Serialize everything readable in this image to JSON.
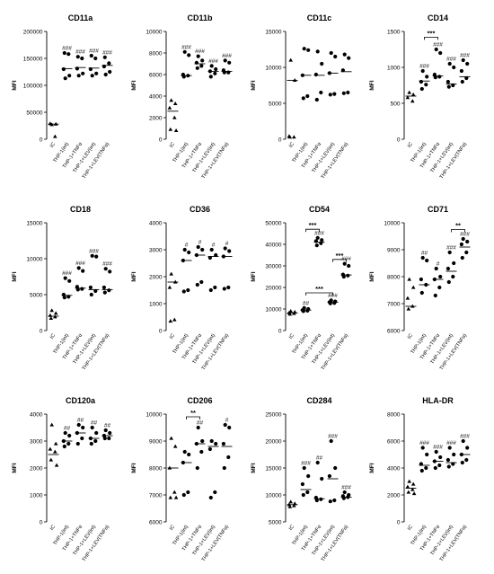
{
  "figure": {
    "categories": [
      "IC",
      "THP-1(int)",
      "THP-1+TNFα",
      "THP-1+LEV(int)",
      "THP-1+LEV(TNFα)"
    ],
    "ylabel": "MFI"
  },
  "chart_data": [
    {
      "type": "scatter",
      "title": "CD11a",
      "ylabel": "MFI",
      "ylim": [
        0,
        200000
      ],
      "yticks": [
        0,
        50000,
        100000,
        150000,
        200000
      ],
      "groups": [
        {
          "values": [
            27000,
            28000,
            29000,
            5000
          ],
          "mean": 28000
        },
        {
          "values": [
            113000,
            118000,
            130000,
            158000,
            160000
          ],
          "mean": 131000
        },
        {
          "values": [
            118000,
            122000,
            131000,
            150000,
            153000
          ],
          "mean": 133000
        },
        {
          "values": [
            118000,
            122000,
            130000,
            150000,
            155000
          ],
          "mean": 132000
        },
        {
          "values": [
            120000,
            125000,
            135000,
            141000,
            152000
          ],
          "mean": 137000
        }
      ],
      "annotations": [
        "",
        "###",
        "###",
        "###",
        "###"
      ],
      "brackets": []
    },
    {
      "type": "scatter",
      "title": "CD11b",
      "ylabel": "MFI",
      "ylim": [
        0,
        10000
      ],
      "yticks": [
        0,
        2000,
        4000,
        6000,
        8000,
        10000
      ],
      "groups": [
        {
          "values": [
            3600,
            3300,
            2900,
            2000,
            900,
            800
          ],
          "mean": 2600
        },
        {
          "values": [
            8100,
            7800,
            6000,
            5900,
            5800
          ],
          "mean": 5900
        },
        {
          "values": [
            7700,
            7300,
            7100,
            6800,
            6600
          ],
          "mean": 7000
        },
        {
          "values": [
            6800,
            6500,
            6300,
            6100,
            5800
          ],
          "mean": 6300
        },
        {
          "values": [
            7300,
            7100,
            6400,
            6200,
            6200
          ],
          "mean": 6300
        }
      ],
      "annotations": [
        "",
        "###",
        "###",
        "###",
        "###"
      ],
      "brackets": []
    },
    {
      "type": "scatter",
      "title": "CD11c",
      "ylabel": "MFI",
      "ylim": [
        0,
        15000
      ],
      "yticks": [
        0,
        5000,
        10000,
        15000
      ],
      "groups": [
        {
          "values": [
            11000,
            8200,
            400,
            300,
            300
          ],
          "mean": 8200
        },
        {
          "values": [
            12600,
            12400,
            8900,
            6000,
            5700
          ],
          "mean": 8900
        },
        {
          "values": [
            12200,
            10500,
            9000,
            6500,
            5500
          ],
          "mean": 8900
        },
        {
          "values": [
            12000,
            11500,
            9200,
            6300,
            6200
          ],
          "mean": 9200
        },
        {
          "values": [
            11800,
            11300,
            9600,
            6500,
            6400
          ],
          "mean": 9400
        }
      ],
      "annotations": [
        "",
        "",
        "",
        "",
        ""
      ],
      "brackets": []
    },
    {
      "type": "scatter",
      "title": "CD14",
      "ylabel": "MFI",
      "ylim": [
        0,
        1500
      ],
      "yticks": [
        0,
        500,
        1000,
        1500
      ],
      "groups": [
        {
          "values": [
            650,
            620,
            580,
            530
          ],
          "mean": 600
        },
        {
          "values": [
            950,
            870,
            800,
            760,
            700
          ],
          "mean": 810
        },
        {
          "values": [
            1250,
            1200,
            900,
            870,
            860
          ],
          "mean": 880
        },
        {
          "values": [
            1050,
            1000,
            800,
            750,
            730
          ],
          "mean": 770
        },
        {
          "values": [
            1100,
            1050,
            950,
            850,
            800
          ],
          "mean": 870
        }
      ],
      "annotations": [
        "",
        "###",
        "###",
        "###",
        "###"
      ],
      "brackets": [
        {
          "from": 1,
          "to": 2,
          "label": "***",
          "y": 1420
        }
      ]
    },
    {
      "type": "scatter",
      "title": "CD18",
      "ylabel": "MFI",
      "ylim": [
        0,
        15000
      ],
      "yticks": [
        0,
        5000,
        10000,
        15000
      ],
      "groups": [
        {
          "values": [
            2800,
            2400,
            2100,
            1900,
            1700
          ],
          "mean": 2000
        },
        {
          "values": [
            7300,
            6900,
            5000,
            4700,
            4600
          ],
          "mean": 4900
        },
        {
          "values": [
            8700,
            8300,
            6100,
            5800,
            5700
          ],
          "mean": 5900
        },
        {
          "values": [
            10400,
            10300,
            6000,
            5500,
            5000
          ],
          "mean": 5700
        },
        {
          "values": [
            8600,
            8200,
            6000,
            5600,
            5300
          ],
          "mean": 5700
        }
      ],
      "annotations": [
        "",
        "###",
        "###",
        "###",
        "###"
      ],
      "brackets": []
    },
    {
      "type": "scatter",
      "title": "CD36",
      "ylabel": "MFI",
      "ylim": [
        0,
        4000
      ],
      "yticks": [
        0,
        1000,
        2000,
        3000,
        4000
      ],
      "groups": [
        {
          "values": [
            2100,
            1800,
            1600,
            400,
            350
          ],
          "mean": 1800
        },
        {
          "values": [
            3000,
            2900,
            2600,
            1500,
            1450
          ],
          "mean": 2600
        },
        {
          "values": [
            3100,
            3000,
            2800,
            1800,
            1700
          ],
          "mean": 2800
        },
        {
          "values": [
            3000,
            2800,
            2700,
            1600,
            1500
          ],
          "mean": 2750
        },
        {
          "values": [
            3050,
            2950,
            2750,
            1600,
            1550
          ],
          "mean": 2750
        }
      ],
      "annotations": [
        "",
        "#",
        "#",
        "#",
        "#"
      ],
      "brackets": []
    },
    {
      "type": "scatter",
      "title": "CD54",
      "ylabel": "MFI",
      "ylim": [
        0,
        50000
      ],
      "yticks": [
        0,
        10000,
        20000,
        30000,
        40000,
        50000
      ],
      "groups": [
        {
          "values": [
            9000,
            8600,
            8200,
            7900,
            7600
          ],
          "mean": 8200
        },
        {
          "values": [
            10500,
            10000,
            9500,
            9200,
            9000
          ],
          "mean": 9500
        },
        {
          "values": [
            43000,
            42000,
            41500,
            40500,
            39500
          ],
          "mean": 41000
        },
        {
          "values": [
            14000,
            13500,
            13200,
            12800,
            12600
          ],
          "mean": 13200
        },
        {
          "values": [
            31000,
            30000,
            26000,
            25500,
            25000
          ],
          "mean": 25800
        }
      ],
      "annotations": [
        "",
        "##",
        "###",
        "###",
        "###"
      ],
      "brackets": [
        {
          "from": 1,
          "to": 2,
          "label": "***",
          "y": 47000
        },
        {
          "from": 3,
          "to": 4,
          "label": "***",
          "y": 33000
        },
        {
          "from": 1,
          "to": 3,
          "label": "***",
          "y": 17500
        }
      ]
    },
    {
      "type": "scatter",
      "title": "CD71",
      "ylabel": "MFI",
      "ylim": [
        6000,
        10000
      ],
      "yticks": [
        6000,
        7000,
        8000,
        9000,
        10000
      ],
      "groups": [
        {
          "values": [
            7900,
            7600,
            7200,
            6900,
            6800
          ],
          "mean": 6900
        },
        {
          "values": [
            8700,
            8600,
            7900,
            7700,
            7400
          ],
          "mean": 7700
        },
        {
          "values": [
            8300,
            8000,
            7900,
            7600,
            7300
          ],
          "mean": 7900
        },
        {
          "values": [
            8900,
            8500,
            8300,
            8000,
            7800
          ],
          "mean": 8200
        },
        {
          "values": [
            9400,
            9300,
            9200,
            8900,
            8700
          ],
          "mean": 9100
        }
      ],
      "annotations": [
        "",
        "##",
        "#",
        "###",
        "###"
      ],
      "brackets": [
        {
          "from": 3,
          "to": 4,
          "label": "**",
          "y": 9750
        }
      ]
    },
    {
      "type": "scatter",
      "title": "CD120a",
      "ylabel": "MFI",
      "ylim": [
        0,
        4000
      ],
      "yticks": [
        0,
        1000,
        2000,
        3000,
        4000
      ],
      "groups": [
        {
          "values": [
            3600,
            2900,
            2700,
            2600,
            2300,
            2100
          ],
          "mean": 2500
        },
        {
          "values": [
            3300,
            3200,
            3000,
            2900,
            2800
          ],
          "mean": 3000
        },
        {
          "values": [
            3600,
            3500,
            3300,
            3100,
            2900
          ],
          "mean": 3300
        },
        {
          "values": [
            3500,
            3300,
            3100,
            3000,
            2900
          ],
          "mean": 3100
        },
        {
          "values": [
            3400,
            3300,
            3200,
            3100,
            3100
          ],
          "mean": 3200
        }
      ],
      "annotations": [
        "",
        "##",
        "##",
        "##",
        "##"
      ],
      "brackets": []
    },
    {
      "type": "scatter",
      "title": "CD206",
      "ylabel": "MFI",
      "ylim": [
        6000,
        10000
      ],
      "yticks": [
        6000,
        7000,
        8000,
        9000,
        10000
      ],
      "groups": [
        {
          "values": [
            9100,
            8800,
            8000,
            7100,
            6900,
            6900
          ],
          "mean": 8000
        },
        {
          "values": [
            8600,
            8500,
            8200,
            7100,
            7000
          ],
          "mean": 8200
        },
        {
          "values": [
            9500,
            9000,
            8900,
            8600,
            8000
          ],
          "mean": 8900
        },
        {
          "values": [
            9000,
            8900,
            8700,
            7100,
            6900
          ],
          "mean": 8800
        },
        {
          "values": [
            9600,
            9500,
            8900,
            8400,
            8000
          ],
          "mean": 8800
        }
      ],
      "annotations": [
        "",
        "",
        "##",
        "",
        "#"
      ],
      "brackets": [
        {
          "from": 1,
          "to": 2,
          "label": "**",
          "y": 9900
        }
      ]
    },
    {
      "type": "scatter",
      "title": "CD284",
      "ylabel": "MFI",
      "ylim": [
        5000,
        25000
      ],
      "yticks": [
        5000,
        10000,
        15000,
        20000,
        25000
      ],
      "groups": [
        {
          "values": [
            8700,
            8400,
            8200,
            8000,
            7800
          ],
          "mean": 8200
        },
        {
          "values": [
            15000,
            13500,
            12000,
            10500,
            10000
          ],
          "mean": 11000
        },
        {
          "values": [
            16000,
            13000,
            9500,
            9200,
            9000
          ],
          "mean": 9300
        },
        {
          "values": [
            20000,
            15000,
            13500,
            9000,
            8800
          ],
          "mean": 13000
        },
        {
          "values": [
            10500,
            10000,
            9800,
            9600,
            9400
          ],
          "mean": 9600
        }
      ],
      "annotations": [
        "",
        "###",
        "##",
        "###",
        "###"
      ],
      "brackets": []
    },
    {
      "type": "scatter",
      "title": "HLA-DR",
      "ylabel": "MFI",
      "ylim": [
        0,
        8000
      ],
      "yticks": [
        0,
        2000,
        4000,
        6000,
        8000
      ],
      "groups": [
        {
          "values": [
            3000,
            2800,
            2600,
            2400,
            2200,
            2100
          ],
          "mean": 2500
        },
        {
          "values": [
            5500,
            5000,
            4300,
            4000,
            3800
          ],
          "mean": 4200
        },
        {
          "values": [
            5200,
            4800,
            4500,
            4200,
            4000
          ],
          "mean": 4500
        },
        {
          "values": [
            5500,
            5000,
            4600,
            4300,
            4100
          ],
          "mean": 4400
        },
        {
          "values": [
            6000,
            5500,
            5000,
            4600,
            4400
          ],
          "mean": 5000
        }
      ],
      "annotations": [
        "",
        "###",
        "###",
        "###",
        "###"
      ],
      "brackets": []
    }
  ]
}
